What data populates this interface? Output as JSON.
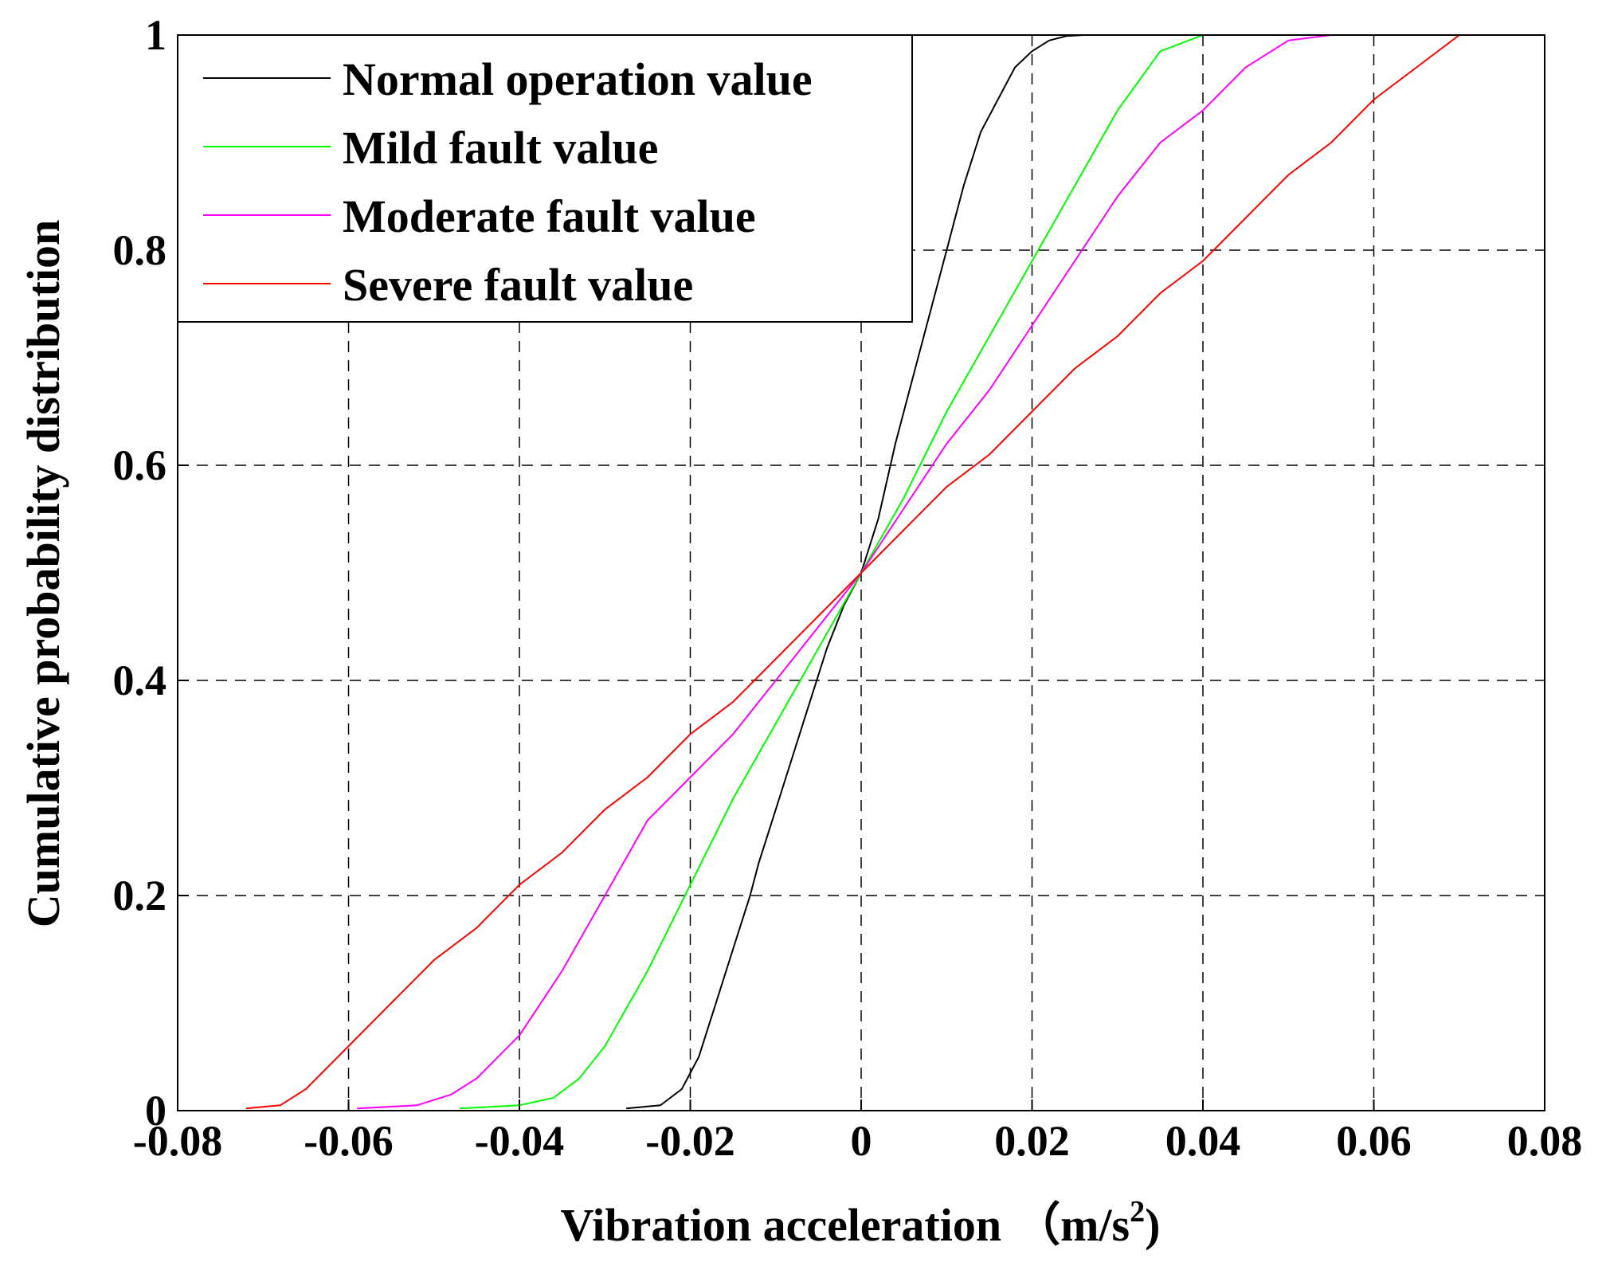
{
  "chart_data": {
    "type": "line",
    "title": "",
    "xlabel": "Vibration acceleration",
    "xlabel_unit_open": "（m/s",
    "xlabel_unit_exp": "2",
    "xlabel_unit_close": ")",
    "ylabel": "Cumulative probability distribution",
    "xlim": [
      -0.08,
      0.08
    ],
    "ylim": [
      0,
      1
    ],
    "x_ticks": [
      -0.08,
      -0.06,
      -0.04,
      -0.02,
      0,
      0.02,
      0.04,
      0.06,
      0.08
    ],
    "x_tick_labels": [
      "-0.08",
      "-0.06",
      "-0.04",
      "-0.02",
      "0",
      "0.02",
      "0.04",
      "0.06",
      "0.08"
    ],
    "y_ticks": [
      0,
      0.2,
      0.4,
      0.6,
      0.8,
      1
    ],
    "y_tick_labels": [
      "0",
      "0.2",
      "0.4",
      "0.6",
      "0.8",
      "1"
    ],
    "grid": "dashed",
    "legend_position": "top-left",
    "series": [
      {
        "name": "Normal operation value",
        "color": "#000000",
        "x": [
          -0.0275,
          -0.0235,
          -0.021,
          -0.019,
          -0.017,
          -0.015,
          -0.013,
          -0.012,
          -0.01,
          -0.008,
          -0.006,
          -0.004,
          -0.002,
          0,
          0.002,
          0.004,
          0.006,
          0.008,
          0.01,
          0.012,
          0.014,
          0.016,
          0.018,
          0.02,
          0.022,
          0.024,
          0.026
        ],
        "y": [
          0.002,
          0.005,
          0.02,
          0.05,
          0.1,
          0.15,
          0.2,
          0.23,
          0.28,
          0.33,
          0.38,
          0.43,
          0.47,
          0.5,
          0.55,
          0.62,
          0.68,
          0.74,
          0.8,
          0.86,
          0.91,
          0.94,
          0.97,
          0.985,
          0.995,
          0.999,
          1.0
        ]
      },
      {
        "name": "Mild fault value",
        "color": "#00ff00",
        "x": [
          -0.047,
          -0.04,
          -0.036,
          -0.033,
          -0.03,
          -0.025,
          -0.02,
          -0.015,
          -0.01,
          -0.005,
          0,
          0.005,
          0.01,
          0.015,
          0.02,
          0.025,
          0.03,
          0.035,
          0.04,
          0.046
        ],
        "y": [
          0.002,
          0.005,
          0.012,
          0.03,
          0.06,
          0.13,
          0.21,
          0.29,
          0.36,
          0.43,
          0.5,
          0.57,
          0.65,
          0.72,
          0.79,
          0.86,
          0.93,
          0.985,
          1.0,
          1.0
        ]
      },
      {
        "name": "Moderate fault value",
        "color": "#ff00ff",
        "x": [
          -0.059,
          -0.052,
          -0.048,
          -0.045,
          -0.04,
          -0.035,
          -0.03,
          -0.025,
          -0.02,
          -0.015,
          -0.01,
          -0.005,
          0,
          0.005,
          0.01,
          0.015,
          0.02,
          0.025,
          0.03,
          0.035,
          0.04,
          0.045,
          0.05,
          0.055,
          0.06
        ],
        "y": [
          0.002,
          0.005,
          0.015,
          0.03,
          0.07,
          0.13,
          0.2,
          0.27,
          0.31,
          0.35,
          0.4,
          0.45,
          0.5,
          0.56,
          0.62,
          0.67,
          0.73,
          0.79,
          0.85,
          0.9,
          0.93,
          0.97,
          0.995,
          1.0,
          1.0
        ]
      },
      {
        "name": "Severe fault value",
        "color": "#ff0000",
        "x": [
          -0.072,
          -0.068,
          -0.065,
          -0.06,
          -0.055,
          -0.05,
          -0.045,
          -0.04,
          -0.035,
          -0.03,
          -0.025,
          -0.02,
          -0.015,
          -0.01,
          -0.005,
          0,
          0.005,
          0.01,
          0.015,
          0.02,
          0.025,
          0.03,
          0.035,
          0.04,
          0.045,
          0.05,
          0.055,
          0.06,
          0.065,
          0.07,
          0.074
        ],
        "y": [
          0.002,
          0.005,
          0.02,
          0.06,
          0.1,
          0.14,
          0.17,
          0.21,
          0.24,
          0.28,
          0.31,
          0.35,
          0.38,
          0.42,
          0.46,
          0.5,
          0.54,
          0.58,
          0.61,
          0.65,
          0.69,
          0.72,
          0.76,
          0.79,
          0.83,
          0.87,
          0.9,
          0.94,
          0.97,
          1.0,
          1.0
        ]
      }
    ]
  }
}
